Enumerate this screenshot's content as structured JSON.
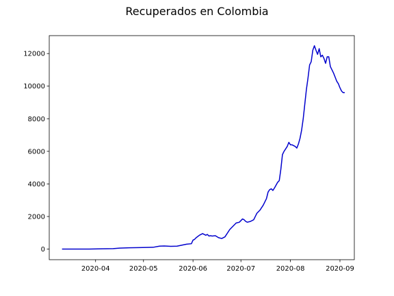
{
  "chart_data": {
    "type": "line",
    "title": "Recuperados en Colombia",
    "xlabel": "",
    "ylabel": "",
    "x_type": "date",
    "xlim": [
      "2020-03-03",
      "2020-09-10"
    ],
    "ylim": [
      -650,
      13100
    ],
    "x_ticks": [
      "2020-04-01",
      "2020-05-01",
      "2020-06-01",
      "2020-07-01",
      "2020-08-01",
      "2020-09-01"
    ],
    "x_tick_labels": [
      "2020-04",
      "2020-05",
      "2020-06",
      "2020-07",
      "2020-08",
      "2020-09"
    ],
    "y_ticks": [
      0,
      2000,
      4000,
      6000,
      8000,
      10000,
      12000
    ],
    "y_tick_labels": [
      "0",
      "2000",
      "4000",
      "6000",
      "8000",
      "10000",
      "12000"
    ],
    "grid": false,
    "colors": {
      "line": "#0000cd",
      "axes": "#000000",
      "background": "#ffffff"
    },
    "series": [
      {
        "x": [
          "2020-03-11",
          "2020-03-20",
          "2020-03-28",
          "2020-04-05",
          "2020-04-12",
          "2020-04-16",
          "2020-04-22",
          "2020-04-28",
          "2020-05-03",
          "2020-05-07",
          "2020-05-11",
          "2020-05-14",
          "2020-05-18",
          "2020-05-22",
          "2020-05-28",
          "2020-05-31",
          "2020-06-01",
          "2020-06-02",
          "2020-06-03",
          "2020-06-05",
          "2020-06-07",
          "2020-06-09",
          "2020-06-10",
          "2020-06-11",
          "2020-06-12",
          "2020-06-13",
          "2020-06-15",
          "2020-06-17",
          "2020-06-19",
          "2020-06-21",
          "2020-06-24",
          "2020-06-26",
          "2020-06-28",
          "2020-06-30",
          "2020-07-01",
          "2020-07-02",
          "2020-07-03",
          "2020-07-04",
          "2020-07-05",
          "2020-07-07",
          "2020-07-09",
          "2020-07-11",
          "2020-07-13",
          "2020-07-15",
          "2020-07-17",
          "2020-07-18",
          "2020-07-19",
          "2020-07-20",
          "2020-07-21",
          "2020-07-22",
          "2020-07-24",
          "2020-07-25",
          "2020-07-26",
          "2020-07-27",
          "2020-07-28",
          "2020-07-29",
          "2020-07-30",
          "2020-07-31",
          "2020-08-01",
          "2020-08-02",
          "2020-08-03",
          "2020-08-04",
          "2020-08-05",
          "2020-08-06",
          "2020-08-07",
          "2020-08-08",
          "2020-08-09",
          "2020-08-10",
          "2020-08-11",
          "2020-08-12",
          "2020-08-13",
          "2020-08-14",
          "2020-08-15",
          "2020-08-16",
          "2020-08-17",
          "2020-08-18",
          "2020-08-19",
          "2020-08-20",
          "2020-08-21",
          "2020-08-22",
          "2020-08-23",
          "2020-08-24",
          "2020-08-25",
          "2020-08-26",
          "2020-08-27",
          "2020-08-28",
          "2020-08-29",
          "2020-08-30",
          "2020-08-31",
          "2020-09-01",
          "2020-09-02",
          "2020-09-03",
          "2020-09-04"
        ],
        "y": [
          0,
          0,
          0,
          20,
          30,
          60,
          80,
          90,
          100,
          110,
          180,
          190,
          170,
          180,
          300,
          330,
          550,
          600,
          700,
          850,
          950,
          850,
          900,
          800,
          820,
          800,
          820,
          700,
          650,
          750,
          1200,
          1400,
          1600,
          1650,
          1750,
          1850,
          1800,
          1700,
          1650,
          1700,
          1800,
          2200,
          2400,
          2700,
          3100,
          3500,
          3650,
          3700,
          3600,
          3750,
          4100,
          4200,
          4900,
          5800,
          6000,
          6150,
          6300,
          6550,
          6400,
          6400,
          6350,
          6300,
          6200,
          6450,
          6800,
          7300,
          8000,
          8900,
          9800,
          10500,
          11300,
          11500,
          12200,
          12480,
          12200,
          11950,
          12300,
          11800,
          11900,
          11700,
          11400,
          11800,
          11800,
          11200,
          11000,
          10800,
          10550,
          10300,
          10150,
          9900,
          9700,
          9600,
          9600
        ]
      }
    ]
  }
}
